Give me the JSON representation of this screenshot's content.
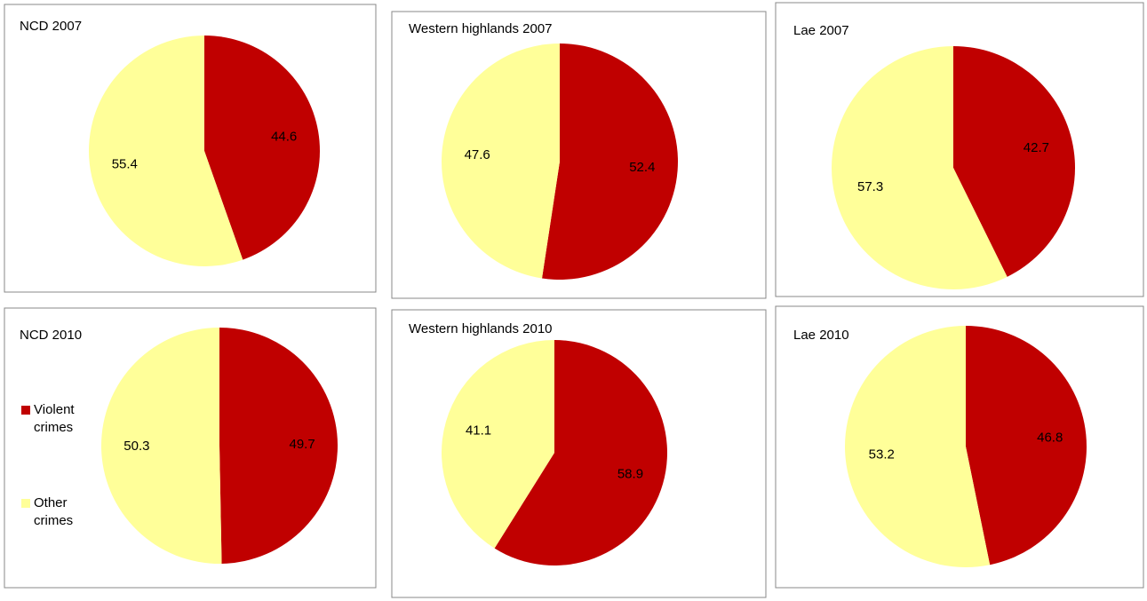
{
  "chart_data": [
    {
      "type": "pie",
      "title": "NCD 2007",
      "values": [
        44.6,
        55.4
      ],
      "colors": [
        "#c00000",
        "#ffff99"
      ]
    },
    {
      "type": "pie",
      "title": "Western highlands 2007",
      "values": [
        52.4,
        47.6
      ],
      "colors": [
        "#c00000",
        "#ffff99"
      ]
    },
    {
      "type": "pie",
      "title": "Lae 2007",
      "values": [
        42.7,
        57.3
      ],
      "colors": [
        "#c00000",
        "#ffff99"
      ]
    },
    {
      "type": "pie",
      "title": "NCD 2010",
      "categories": [
        "Violent crimes",
        "Other crimes"
      ],
      "values": [
        49.7,
        50.3
      ],
      "colors": [
        "#c00000",
        "#ffff99"
      ],
      "legend": "left"
    },
    {
      "type": "pie",
      "title": "Western highlands 2010",
      "values": [
        58.9,
        41.1
      ],
      "colors": [
        "#c00000",
        "#ffff99"
      ]
    },
    {
      "type": "pie",
      "title": "Lae 2010",
      "values": [
        46.8,
        53.2
      ],
      "colors": [
        "#c00000",
        "#ffff99"
      ]
    }
  ]
}
